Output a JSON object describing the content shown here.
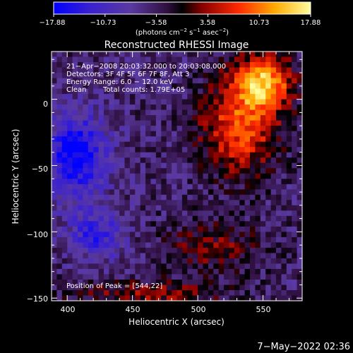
{
  "chart_data": {
    "type": "heatmap",
    "title": "Reconstructed RHESSI Image",
    "xlabel": "Heliocentric X (arcsec)",
    "ylabel": "Heliocentric Y (arcsec)",
    "xlim": [
      388,
      580
    ],
    "ylim": [
      -152,
      36
    ],
    "xticks": [
      "400",
      "450",
      "500",
      "550"
    ],
    "yticks": [
      "0",
      "−50",
      "−100",
      "−150"
    ],
    "colorbar": {
      "ticks": [
        "−17.88",
        "−10.73",
        "−3.58",
        "3.58",
        "10.73",
        "17.88"
      ],
      "range": [
        -17.88,
        17.88
      ],
      "units_prefix": "(photons cm",
      "units_exp1": "−2",
      "units_mid1": " s",
      "units_exp2": "−1",
      "units_mid2": " asec",
      "units_exp3": "−2",
      "units_suffix": ")",
      "colors": [
        "#0000ff",
        "#4020c0",
        "#5a3aa0",
        "#30103a",
        "#000000",
        "#8a0000",
        "#ff2a00",
        "#ff9a00",
        "#ffff60"
      ]
    },
    "annotations": {
      "line1": "21−Apr−2008 20:03:32.000 to 20:03:08.000",
      "line2": "Detectors: 3F 4F 5F 6F 7F 8F, Att 3",
      "line3": "Energy Range: 6.0 − 12.0 keV",
      "line4_a": "Clean",
      "line4_b": "Total counts: 1.79E+05",
      "peak": "Position of Peak = [544,22]"
    },
    "peak": [
      544,
      22
    ],
    "regions": [
      {
        "name": "bright-core",
        "x": 548,
        "y": 15,
        "value": 17.5,
        "sx": 22,
        "sy": 20
      },
      {
        "name": "upper-right-emission",
        "x": 530,
        "y": -20,
        "value": 13,
        "sx": 30,
        "sy": 35
      },
      {
        "name": "bottom-red",
        "x": 460,
        "y": -145,
        "value": 7,
        "sx": 60,
        "sy": 10
      },
      {
        "name": "mid-right-red",
        "x": 510,
        "y": -110,
        "value": 6,
        "sx": 40,
        "sy": 20
      },
      {
        "name": "left-blue",
        "x": 405,
        "y": -40,
        "value": -14,
        "sx": 22,
        "sy": 30
      },
      {
        "name": "lower-left-purple",
        "x": 420,
        "y": -100,
        "value": -9,
        "sx": 20,
        "sy": 18
      }
    ]
  },
  "footer": {
    "timestamp": "7−May−2022 02:36"
  }
}
